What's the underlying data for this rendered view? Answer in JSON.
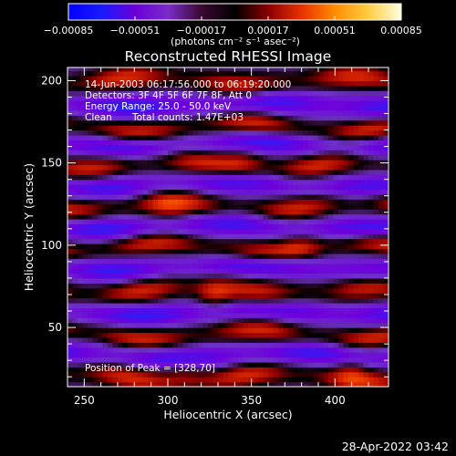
{
  "chart_data": {
    "type": "heatmap",
    "title": "Reconstructed RHESSI Image",
    "xlabel": "Heliocentric X (arcsec)",
    "ylabel": "Heliocentric Y (arcsec)",
    "xlim": [
      240,
      432
    ],
    "ylim": [
      14,
      208
    ],
    "xticks": [
      {
        "value": 250,
        "label": "250"
      },
      {
        "value": 300,
        "label": "300"
      },
      {
        "value": 350,
        "label": "350"
      },
      {
        "value": 400,
        "label": "400"
      }
    ],
    "yticks": [
      {
        "value": 50,
        "label": "50"
      },
      {
        "value": 100,
        "label": "100"
      },
      {
        "value": 150,
        "label": "150"
      },
      {
        "value": 200,
        "label": "200"
      }
    ],
    "colorbar": {
      "range": [
        -0.00085,
        0.00085
      ],
      "ticks": [
        {
          "value": -0.00085,
          "label": "−0.00085"
        },
        {
          "value": -0.00051,
          "label": "−0.00051"
        },
        {
          "value": -0.00017,
          "label": "−0.00017"
        },
        {
          "value": 0.00017,
          "label": "0.00017"
        },
        {
          "value": 0.00051,
          "label": "0.00051"
        },
        {
          "value": 0.00085,
          "label": "0.00085"
        }
      ],
      "unit_label": "(photons cm⁻² s⁻¹ asec⁻²)",
      "colors": [
        "#0000ff",
        "#1a1aff",
        "#6a00d8",
        "#7a2cc8",
        "#3a0830",
        "#000000",
        "#8a0000",
        "#e83000",
        "#ff8c00",
        "#ffcc40",
        "#ffffe0"
      ]
    },
    "annotations": {
      "time": "14-Jun-2003 06:17:56.000 to 06:19:20.000",
      "detectors": "Detectors: 3F 4F 5F 6F 7F 8F, Att 0",
      "energy": "Energy Range: 25.0 - 50.0 keV",
      "clean": "Clean",
      "counts": "Total counts: 1.47E+03",
      "peak": "Position of Peak = [328,70]"
    },
    "peak": {
      "x": 328,
      "y": 70
    }
  },
  "footer": {
    "timestamp": "28-Apr-2022 03:42"
  }
}
